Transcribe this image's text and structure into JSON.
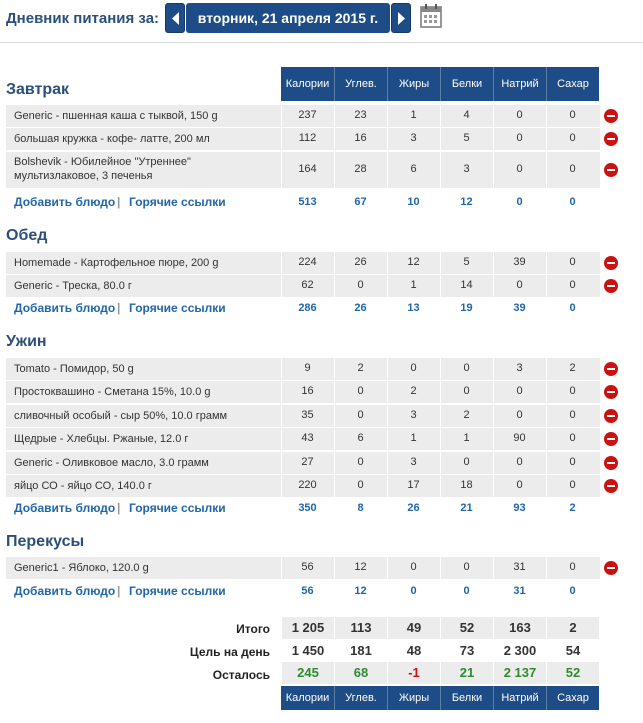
{
  "header": {
    "title": "Дневник питания за:",
    "date": "вторник, 21 апреля 2015 г."
  },
  "columns": [
    "Калории",
    "Углев.",
    "Жиры",
    "Белки",
    "Натрий",
    "Сахар"
  ],
  "links": {
    "add": "Добавить блюдо",
    "quick": "Горячие ссылки",
    "sep": "|"
  },
  "meals": [
    {
      "title": "Завтрак",
      "items": [
        {
          "name": "Generic - пшенная каша с тыквой, 150 g",
          "values": [
            "237",
            "23",
            "1",
            "4",
            "0",
            "0"
          ]
        },
        {
          "name": "большая кружка - кофе- латте, 200 мл",
          "values": [
            "112",
            "16",
            "3",
            "5",
            "0",
            "0"
          ]
        },
        {
          "name": "Bolshevik - Юбилейное \"Утреннее\"",
          "name2": "мультизлаковое, 3 печенья",
          "values": [
            "164",
            "28",
            "6",
            "3",
            "0",
            "0"
          ]
        }
      ],
      "totals": [
        "513",
        "67",
        "10",
        "12",
        "0",
        "0"
      ]
    },
    {
      "title": "Обед",
      "items": [
        {
          "name": "Homemade - Картофельное пюре, 200 g",
          "values": [
            "224",
            "26",
            "12",
            "5",
            "39",
            "0"
          ]
        },
        {
          "name": "Generic - Треска, 80.0 г",
          "values": [
            "62",
            "0",
            "1",
            "14",
            "0",
            "0"
          ]
        }
      ],
      "totals": [
        "286",
        "26",
        "13",
        "19",
        "39",
        "0"
      ]
    },
    {
      "title": "Ужин",
      "items": [
        {
          "name": "Tomato - Помидор, 50 g",
          "values": [
            "9",
            "2",
            "0",
            "0",
            "3",
            "2"
          ]
        },
        {
          "name": "Простоквашино - Сметана 15%, 10.0 g",
          "values": [
            "16",
            "0",
            "2",
            "0",
            "0",
            "0"
          ]
        },
        {
          "name": "сливочный особый - сыр 50%, 10.0 грамм",
          "values": [
            "35",
            "0",
            "3",
            "2",
            "0",
            "0"
          ]
        },
        {
          "name": "Щедрые - Хлебцы. Ржаные, 12.0 г",
          "values": [
            "43",
            "6",
            "1",
            "1",
            "90",
            "0"
          ]
        },
        {
          "name": "Generic - Оливковое масло, 3.0 грамм",
          "values": [
            "27",
            "0",
            "3",
            "0",
            "0",
            "0"
          ]
        },
        {
          "name": "яйцо СО - яйцо СО, 140.0 г",
          "values": [
            "220",
            "0",
            "17",
            "18",
            "0",
            "0"
          ]
        }
      ],
      "totals": [
        "350",
        "8",
        "26",
        "21",
        "93",
        "2"
      ]
    },
    {
      "title": "Перекусы",
      "items": [
        {
          "name": "Generic1 - Яблоко, 120.0 g",
          "values": [
            "56",
            "12",
            "0",
            "0",
            "31",
            "0"
          ]
        }
      ],
      "totals": [
        "56",
        "12",
        "0",
        "0",
        "31",
        "0"
      ]
    }
  ],
  "summary": {
    "total_label": "Итого",
    "total": [
      "1 205",
      "113",
      "49",
      "52",
      "163",
      "2"
    ],
    "goal_label": "Цель на день",
    "goal": [
      "1 450",
      "181",
      "48",
      "73",
      "2 300",
      "54"
    ],
    "left_label": "Осталось",
    "left": [
      "245",
      "68",
      "-1",
      "21",
      "2 137",
      "52"
    ]
  },
  "colors": {
    "accent": "#1e4c86",
    "link": "#2266aa",
    "remaining": "#2e8b2e",
    "negative": "#cc1111"
  }
}
